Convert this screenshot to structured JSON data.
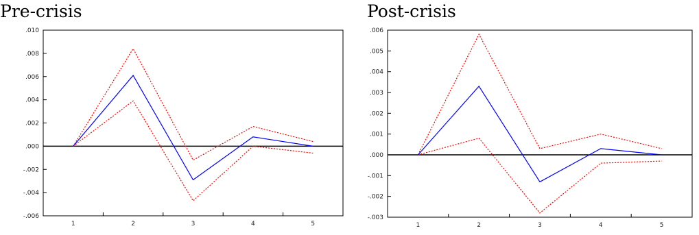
{
  "colors": {
    "background": "#ffffff",
    "frame": "#000000",
    "zero_line": "#000000",
    "response": "#0000ff",
    "band": "#ff0000"
  },
  "chart_data": [
    {
      "type": "line",
      "title": "Pre-crisis",
      "x": [
        1,
        2,
        3,
        4,
        5
      ],
      "xticks": [
        "1",
        "2",
        "3",
        "4",
        "5"
      ],
      "yticks": [
        "-.006",
        "-.004",
        "-.002",
        ".000",
        ".002",
        ".004",
        ".006",
        ".008",
        ".010"
      ],
      "ytick_values": [
        -0.006,
        -0.004,
        -0.002,
        0.0,
        0.002,
        0.004,
        0.006,
        0.008,
        0.01
      ],
      "ylim": [
        -0.006,
        0.01
      ],
      "zero_line": true,
      "grid": false,
      "series": [
        {
          "role": "response",
          "color": "#0000ff",
          "style": "solid",
          "values": [
            0.0,
            0.0061,
            -0.0029,
            0.0008,
            0.0
          ]
        },
        {
          "role": "upper_band",
          "color": "#ff0000",
          "style": "dotted",
          "values": [
            0.0,
            0.0084,
            -0.0012,
            0.0017,
            0.0004
          ]
        },
        {
          "role": "lower_band",
          "color": "#ff0000",
          "style": "dotted",
          "values": [
            0.0,
            0.0039,
            -0.0047,
            0.0,
            -0.0006
          ]
        }
      ]
    },
    {
      "type": "line",
      "title": "Post-crisis",
      "x": [
        1,
        2,
        3,
        4,
        5
      ],
      "xticks": [
        "1",
        "2",
        "3",
        "4",
        "5"
      ],
      "yticks": [
        "-.003",
        "-.002",
        "-.001",
        ".000",
        ".001",
        ".002",
        ".003",
        ".004",
        ".005",
        ".006"
      ],
      "ytick_values": [
        -0.003,
        -0.002,
        -0.001,
        0.0,
        0.001,
        0.002,
        0.003,
        0.004,
        0.005,
        0.006
      ],
      "ylim": [
        -0.003,
        0.006
      ],
      "zero_line": true,
      "grid": false,
      "series": [
        {
          "role": "response",
          "color": "#0000ff",
          "style": "solid",
          "values": [
            0.0,
            0.0033,
            -0.0013,
            0.0003,
            0.0
          ]
        },
        {
          "role": "upper_band",
          "color": "#ff0000",
          "style": "dotted",
          "values": [
            0.0,
            0.0058,
            0.0003,
            0.001,
            0.0003
          ]
        },
        {
          "role": "lower_band",
          "color": "#ff0000",
          "style": "dotted",
          "values": [
            0.0,
            0.0008,
            -0.0028,
            -0.0004,
            -0.0003
          ]
        }
      ]
    }
  ]
}
